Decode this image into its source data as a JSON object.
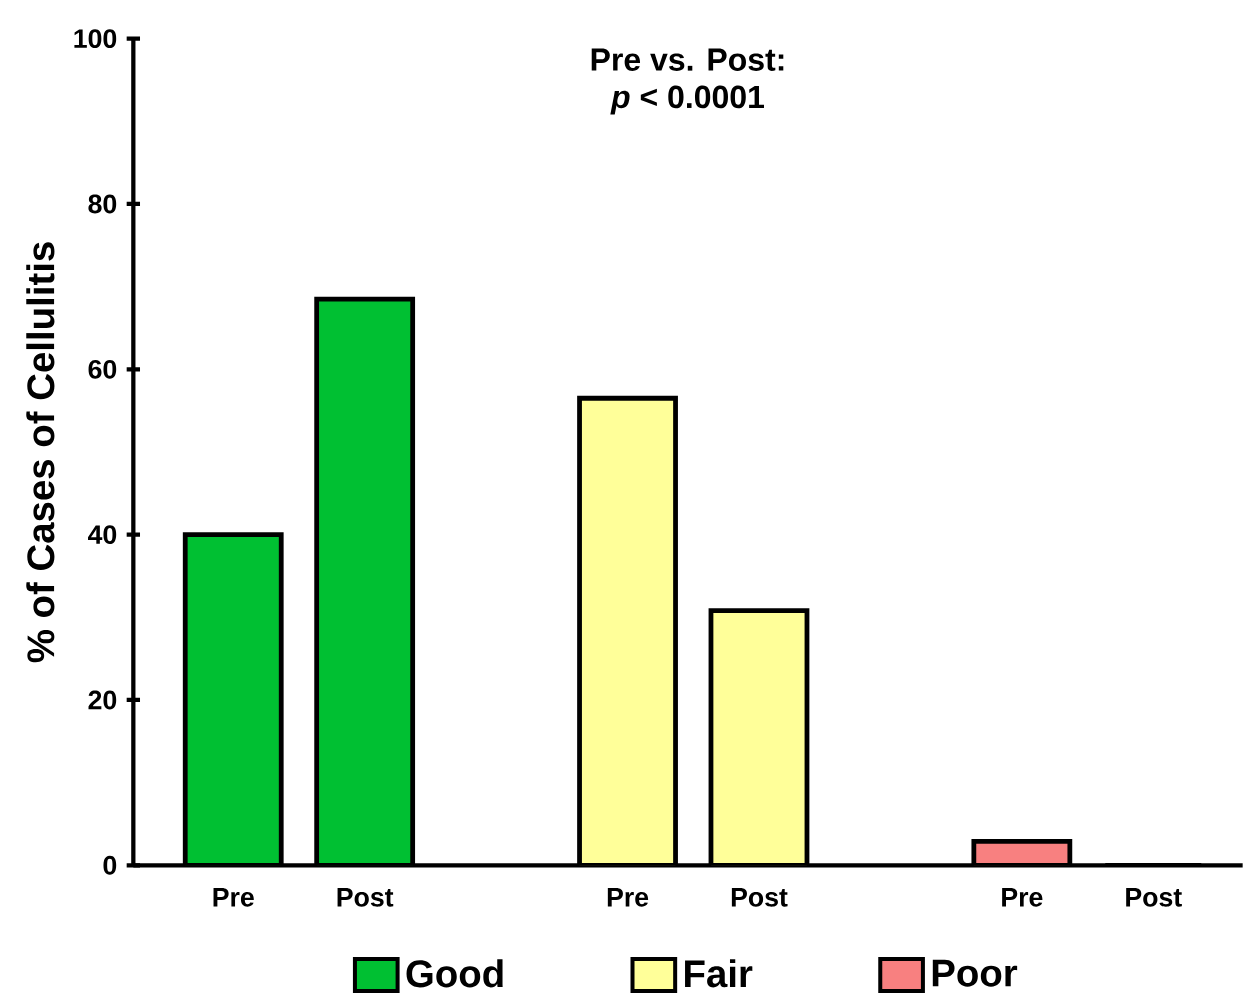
{
  "chart_data": {
    "type": "bar",
    "title": "Pre vs. Post:",
    "subtitle": "*p* < 0.0001",
    "ylabel": "% of Cases of Cellulitis",
    "categories": [
      "Pre",
      "Post",
      null,
      "Pre",
      "Post",
      null,
      "Pre",
      "Post"
    ],
    "series": [
      {
        "name": "Good",
        "color": "#00c032",
        "values": [
          40,
          68.5,
          null,
          null,
          null,
          null,
          null,
          null
        ]
      },
      {
        "name": "Fair",
        "color": "#ffff99",
        "values": [
          null,
          null,
          null,
          56.5,
          30.8,
          null,
          null,
          null
        ]
      },
      {
        "name": "Poor",
        "color": "#f88080",
        "values": [
          null,
          null,
          null,
          null,
          null,
          null,
          2.9,
          0
        ]
      }
    ],
    "ylim": [
      0,
      100
    ],
    "yticks": [
      0,
      20,
      40,
      60,
      80,
      100
    ],
    "grid": false,
    "legend": "bottom"
  }
}
